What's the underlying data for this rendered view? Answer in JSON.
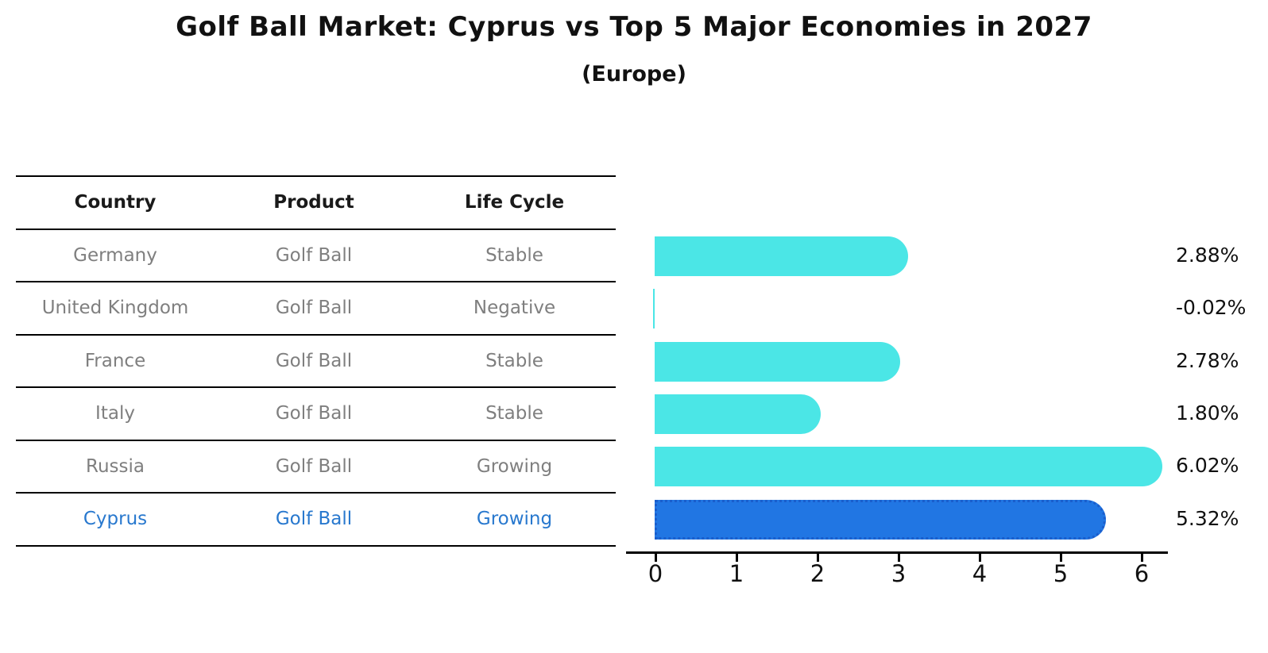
{
  "title": "Golf Ball Market: Cyprus vs Top 5 Major Economies in 2027",
  "subtitle": "(Europe)",
  "table": {
    "headers": [
      "Country",
      "Product",
      "Life Cycle"
    ],
    "rows": [
      {
        "country": "Germany",
        "product": "Golf Ball",
        "life_cycle": "Stable",
        "highlight": false
      },
      {
        "country": "United Kingdom",
        "product": "Golf Ball",
        "life_cycle": "Negative",
        "highlight": false
      },
      {
        "country": "France",
        "product": "Golf Ball",
        "life_cycle": "Stable",
        "highlight": false
      },
      {
        "country": "Italy",
        "product": "Golf Ball",
        "life_cycle": "Stable",
        "highlight": false
      },
      {
        "country": "Russia",
        "product": "Golf Ball",
        "life_cycle": "Growing",
        "highlight": false
      },
      {
        "country": "Cyprus",
        "product": "Golf Ball",
        "life_cycle": "Growing",
        "highlight": true
      }
    ]
  },
  "chart_data": {
    "type": "bar",
    "orientation": "horizontal",
    "categories": [
      "Germany",
      "United Kingdom",
      "France",
      "Italy",
      "Russia",
      "Cyprus"
    ],
    "values": [
      2.88,
      -0.02,
      2.78,
      1.8,
      6.02,
      5.32
    ],
    "value_labels": [
      "2.88%",
      "-0.02%",
      "2.78%",
      "1.80%",
      "6.02%",
      "5.32%"
    ],
    "x_ticks": [
      "0",
      "1",
      "2",
      "3",
      "4",
      "5",
      "6"
    ],
    "xlim": [
      0,
      6.3
    ],
    "grid": false,
    "legend": false,
    "highlight_category": "Cyprus",
    "colors": {
      "bar_default": "#4BE6E6",
      "bar_highlight": "#2176E3",
      "bar_highlight_border": "#1A5ECC",
      "axis": "#000000",
      "text": "#111111",
      "table_text": "#7f7f7f",
      "table_highlight_text": "#2878CE"
    }
  }
}
